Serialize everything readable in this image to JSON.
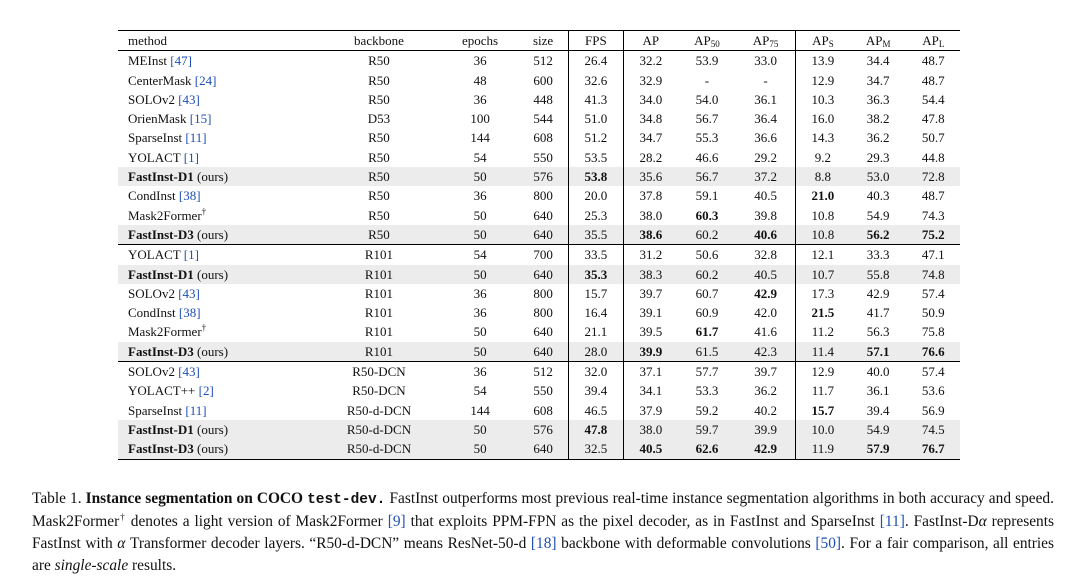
{
  "table": {
    "headers": {
      "method": "method",
      "backbone": "backbone",
      "epochs": "epochs",
      "size": "size",
      "fps": "FPS",
      "ap": "AP",
      "ap50_base": "AP",
      "ap50_sub": "50",
      "ap75_base": "AP",
      "ap75_sub": "75",
      "aps_base": "AP",
      "aps_sub": "S",
      "apm_base": "AP",
      "apm_sub": "M",
      "apl_base": "AP",
      "apl_sub": "L"
    },
    "groups": [
      [
        {
          "name": "MEInst",
          "cite": "[47]",
          "suffix": "",
          "dagger": "",
          "backbone": "R50",
          "epochs": "36",
          "size": "512",
          "fps": "26.4",
          "ap": "32.2",
          "ap50": "53.9",
          "ap75": "33.0",
          "aps": "13.9",
          "apm": "34.4",
          "apl": "48.7",
          "highlight": false,
          "bold_name": false,
          "bold": []
        },
        {
          "name": "CenterMask",
          "cite": "[24]",
          "suffix": "",
          "dagger": "",
          "backbone": "R50",
          "epochs": "48",
          "size": "600",
          "fps": "32.6",
          "ap": "32.9",
          "ap50": "-",
          "ap75": "-",
          "aps": "12.9",
          "apm": "34.7",
          "apl": "48.7",
          "highlight": false,
          "bold_name": false,
          "bold": []
        },
        {
          "name": "SOLOv2",
          "cite": "[43]",
          "suffix": "",
          "dagger": "",
          "backbone": "R50",
          "epochs": "36",
          "size": "448",
          "fps": "41.3",
          "ap": "34.0",
          "ap50": "54.0",
          "ap75": "36.1",
          "aps": "10.3",
          "apm": "36.3",
          "apl": "54.4",
          "highlight": false,
          "bold_name": false,
          "bold": []
        },
        {
          "name": "OrienMask",
          "cite": "[15]",
          "suffix": "",
          "dagger": "",
          "backbone": "D53",
          "epochs": "100",
          "size": "544",
          "fps": "51.0",
          "ap": "34.8",
          "ap50": "56.7",
          "ap75": "36.4",
          "aps": "16.0",
          "apm": "38.2",
          "apl": "47.8",
          "highlight": false,
          "bold_name": false,
          "bold": []
        },
        {
          "name": "SparseInst",
          "cite": "[11]",
          "suffix": "",
          "dagger": "",
          "backbone": "R50",
          "epochs": "144",
          "size": "608",
          "fps": "51.2",
          "ap": "34.7",
          "ap50": "55.3",
          "ap75": "36.6",
          "aps": "14.3",
          "apm": "36.2",
          "apl": "50.7",
          "highlight": false,
          "bold_name": false,
          "bold": []
        },
        {
          "name": "YOLACT",
          "cite": "[1]",
          "suffix": "",
          "dagger": "",
          "backbone": "R50",
          "epochs": "54",
          "size": "550",
          "fps": "53.5",
          "ap": "28.2",
          "ap50": "46.6",
          "ap75": "29.2",
          "aps": "9.2",
          "apm": "29.3",
          "apl": "44.8",
          "highlight": false,
          "bold_name": false,
          "bold": []
        },
        {
          "name": "FastInst-D1",
          "cite": "",
          "suffix": "(ours)",
          "dagger": "",
          "backbone": "R50",
          "epochs": "50",
          "size": "576",
          "fps": "53.8",
          "ap": "35.6",
          "ap50": "56.7",
          "ap75": "37.2",
          "aps": "8.8",
          "apm": "53.0",
          "apl": "72.8",
          "highlight": true,
          "bold_name": true,
          "bold": [
            "fps"
          ]
        },
        {
          "name": "CondInst",
          "cite": "[38]",
          "suffix": "",
          "dagger": "",
          "backbone": "R50",
          "epochs": "36",
          "size": "800",
          "fps": "20.0",
          "ap": "37.8",
          "ap50": "59.1",
          "ap75": "40.5",
          "aps": "21.0",
          "apm": "40.3",
          "apl": "48.7",
          "highlight": false,
          "bold_name": false,
          "bold": [
            "aps"
          ]
        },
        {
          "name": "Mask2Former",
          "cite": "",
          "suffix": "",
          "dagger": "†",
          "backbone": "R50",
          "epochs": "50",
          "size": "640",
          "fps": "25.3",
          "ap": "38.0",
          "ap50": "60.3",
          "ap75": "39.8",
          "aps": "10.8",
          "apm": "54.9",
          "apl": "74.3",
          "highlight": false,
          "bold_name": false,
          "bold": [
            "ap50"
          ]
        },
        {
          "name": "FastInst-D3",
          "cite": "",
          "suffix": "(ours)",
          "dagger": "",
          "backbone": "R50",
          "epochs": "50",
          "size": "640",
          "fps": "35.5",
          "ap": "38.6",
          "ap50": "60.2",
          "ap75": "40.6",
          "aps": "10.8",
          "apm": "56.2",
          "apl": "75.2",
          "highlight": true,
          "bold_name": true,
          "bold": [
            "ap",
            "ap75",
            "apm",
            "apl"
          ]
        }
      ],
      [
        {
          "name": "YOLACT",
          "cite": "[1]",
          "suffix": "",
          "dagger": "",
          "backbone": "R101",
          "epochs": "54",
          "size": "700",
          "fps": "33.5",
          "ap": "31.2",
          "ap50": "50.6",
          "ap75": "32.8",
          "aps": "12.1",
          "apm": "33.3",
          "apl": "47.1",
          "highlight": false,
          "bold_name": false,
          "bold": []
        },
        {
          "name": "FastInst-D1",
          "cite": "",
          "suffix": "(ours)",
          "dagger": "",
          "backbone": "R101",
          "epochs": "50",
          "size": "640",
          "fps": "35.3",
          "ap": "38.3",
          "ap50": "60.2",
          "ap75": "40.5",
          "aps": "10.7",
          "apm": "55.8",
          "apl": "74.8",
          "highlight": true,
          "bold_name": true,
          "bold": [
            "fps"
          ]
        },
        {
          "name": "SOLOv2",
          "cite": "[43]",
          "suffix": "",
          "dagger": "",
          "backbone": "R101",
          "epochs": "36",
          "size": "800",
          "fps": "15.7",
          "ap": "39.7",
          "ap50": "60.7",
          "ap75": "42.9",
          "aps": "17.3",
          "apm": "42.9",
          "apl": "57.4",
          "highlight": false,
          "bold_name": false,
          "bold": [
            "ap75"
          ]
        },
        {
          "name": "CondInst",
          "cite": "[38]",
          "suffix": "",
          "dagger": "",
          "backbone": "R101",
          "epochs": "36",
          "size": "800",
          "fps": "16.4",
          "ap": "39.1",
          "ap50": "60.9",
          "ap75": "42.0",
          "aps": "21.5",
          "apm": "41.7",
          "apl": "50.9",
          "highlight": false,
          "bold_name": false,
          "bold": [
            "aps"
          ]
        },
        {
          "name": "Mask2Former",
          "cite": "",
          "suffix": "",
          "dagger": "†",
          "backbone": "R101",
          "epochs": "50",
          "size": "640",
          "fps": "21.1",
          "ap": "39.5",
          "ap50": "61.7",
          "ap75": "41.6",
          "aps": "11.2",
          "apm": "56.3",
          "apl": "75.8",
          "highlight": false,
          "bold_name": false,
          "bold": [
            "ap50"
          ]
        },
        {
          "name": "FastInst-D3",
          "cite": "",
          "suffix": "(ours)",
          "dagger": "",
          "backbone": "R101",
          "epochs": "50",
          "size": "640",
          "fps": "28.0",
          "ap": "39.9",
          "ap50": "61.5",
          "ap75": "42.3",
          "aps": "11.4",
          "apm": "57.1",
          "apl": "76.6",
          "highlight": true,
          "bold_name": true,
          "bold": [
            "ap",
            "apm",
            "apl"
          ]
        }
      ],
      [
        {
          "name": "SOLOv2",
          "cite": "[43]",
          "suffix": "",
          "dagger": "",
          "backbone": "R50-DCN",
          "epochs": "36",
          "size": "512",
          "fps": "32.0",
          "ap": "37.1",
          "ap50": "57.7",
          "ap75": "39.7",
          "aps": "12.9",
          "apm": "40.0",
          "apl": "57.4",
          "highlight": false,
          "bold_name": false,
          "bold": []
        },
        {
          "name": "YOLACT++",
          "cite": "[2]",
          "suffix": "",
          "dagger": "",
          "backbone": "R50-DCN",
          "epochs": "54",
          "size": "550",
          "fps": "39.4",
          "ap": "34.1",
          "ap50": "53.3",
          "ap75": "36.2",
          "aps": "11.7",
          "apm": "36.1",
          "apl": "53.6",
          "highlight": false,
          "bold_name": false,
          "bold": []
        },
        {
          "name": "SparseInst",
          "cite": "[11]",
          "suffix": "",
          "dagger": "",
          "backbone": "R50-d-DCN",
          "epochs": "144",
          "size": "608",
          "fps": "46.5",
          "ap": "37.9",
          "ap50": "59.2",
          "ap75": "40.2",
          "aps": "15.7",
          "apm": "39.4",
          "apl": "56.9",
          "highlight": false,
          "bold_name": false,
          "bold": [
            "aps"
          ]
        },
        {
          "name": "FastInst-D1",
          "cite": "",
          "suffix": "(ours)",
          "dagger": "",
          "backbone": "R50-d-DCN",
          "epochs": "50",
          "size": "576",
          "fps": "47.8",
          "ap": "38.0",
          "ap50": "59.7",
          "ap75": "39.9",
          "aps": "10.0",
          "apm": "54.9",
          "apl": "74.5",
          "highlight": true,
          "bold_name": true,
          "bold": [
            "fps"
          ]
        },
        {
          "name": "FastInst-D3",
          "cite": "",
          "suffix": "(ours)",
          "dagger": "",
          "backbone": "R50-d-DCN",
          "epochs": "50",
          "size": "640",
          "fps": "32.5",
          "ap": "40.5",
          "ap50": "62.6",
          "ap75": "42.9",
          "aps": "11.9",
          "apm": "57.9",
          "apl": "76.7",
          "highlight": true,
          "bold_name": true,
          "bold": [
            "ap",
            "ap50",
            "ap75",
            "apm",
            "apl"
          ]
        }
      ]
    ]
  },
  "caption": {
    "label": "Table 1.",
    "title_bold": "Instance segmentation on COCO",
    "title_mono": "test-dev.",
    "s1": "FastInst outperforms most previous real-time instance segmentation algorithms in both accuracy and speed. Mask2Former",
    "dagger": "†",
    "s2": "denotes a light version of Mask2Former",
    "cite1": "[9]",
    "s3": "that exploits PPM-FPN as the pixel decoder, as in FastInst and SparseInst",
    "cite2": "[11]",
    "s4": ". FastInst-D",
    "alpha1": "α",
    "s5": "represents FastInst with",
    "alpha2": "α",
    "s6": "Transformer decoder layers. “R50-d-DCN” means ResNet-50-d",
    "cite3": "[18]",
    "s7": "backbone with deformable convolutions",
    "cite4": "[50]",
    "s8": ". For a fair comparison, all entries are",
    "italic": "single-scale",
    "s9": "results."
  }
}
